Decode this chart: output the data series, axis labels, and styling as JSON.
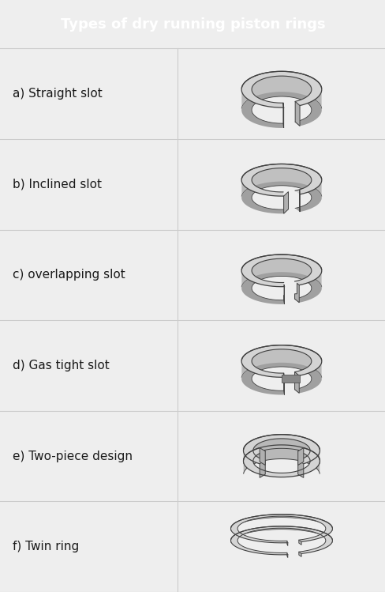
{
  "title": "Types of dry running piston rings",
  "title_bg": "#c0272d",
  "title_color": "#ffffff",
  "title_fontsize": 13,
  "bg_color": "#eeeeee",
  "labels": [
    "a) Straight slot",
    "b) Inclined slot",
    "c) overlapping slot",
    "d) Gas tight slot",
    "e) Two-piece design",
    "f) Twin ring"
  ],
  "label_fontsize": 11,
  "ring_color_top": "#d4d4d4",
  "ring_color_side": "#b8b8b8",
  "ring_color_inner": "#c0c0c0",
  "ring_color_bottom": "#a0a0a0",
  "ring_edge": "#404040",
  "gap_face_color": "#b0b0b0",
  "fig_width": 4.89,
  "fig_height": 7.49,
  "dpi": 100,
  "row_bgs": [
    "#f2f2f2",
    "#ebebeb",
    "#f2f2f2",
    "#ebebeb",
    "#f2f2f2",
    "#ebebeb"
  ],
  "ring_box_bgs": [
    "#f0f0f0",
    "#ebebeb",
    "#e8e8e8",
    "#ebebeb",
    "#e8e8e8",
    "#ebebeb"
  ]
}
